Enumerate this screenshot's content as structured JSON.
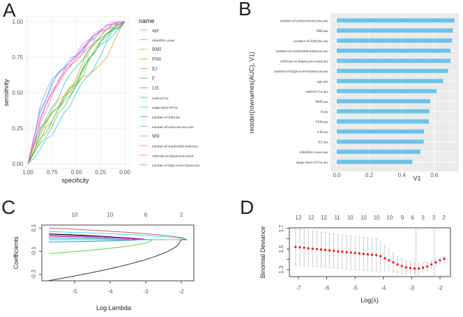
{
  "panels": {
    "a": "A",
    "b": "B",
    "c": "C",
    "d": "D"
  },
  "chart_data": [
    {
      "type": "line",
      "xlabel": "specificity",
      "ylabel": "sensitivity",
      "xlim": [
        1.0,
        0.0
      ],
      "ylim": [
        0.0,
        1.0
      ],
      "x_reversed": true,
      "xticks": [
        "1.00",
        "0.75",
        "0.50",
        "0.25",
        "0.00"
      ],
      "yticks": [
        "0.00",
        "0.25",
        "0.50",
        "0.75",
        "1.00"
      ],
      "grid": true,
      "legend_title": "name",
      "legend_position": "right",
      "x": [
        1.0,
        0.875,
        0.75,
        0.625,
        0.5,
        0.375,
        0.25,
        0.125,
        0.0
      ],
      "series": [
        {
          "name": "age",
          "color": "#F8766D",
          "values": [
            0,
            0.3,
            0.5,
            0.63,
            0.72,
            0.82,
            0.9,
            0.96,
            1
          ]
        },
        {
          "name": "infertility-years",
          "color": "#E58700",
          "values": [
            0,
            0.25,
            0.38,
            0.48,
            0.56,
            0.62,
            0.7,
            0.84,
            1
          ]
        },
        {
          "name": "BMI",
          "color": "#C99800",
          "values": [
            0,
            0.2,
            0.36,
            0.48,
            0.58,
            0.78,
            0.88,
            0.95,
            1
          ]
        },
        {
          "name": "FSH",
          "color": "#A3A500",
          "values": [
            0,
            0.16,
            0.3,
            0.46,
            0.6,
            0.8,
            0.9,
            0.96,
            1
          ]
        },
        {
          "name": "E2",
          "color": "#6BB100",
          "values": [
            0,
            0.14,
            0.26,
            0.4,
            0.55,
            0.72,
            0.86,
            0.95,
            1
          ]
        },
        {
          "name": "P",
          "color": "#00BA38",
          "values": [
            0,
            0.22,
            0.36,
            0.46,
            0.56,
            0.74,
            0.86,
            0.94,
            1
          ]
        },
        {
          "name": "LH",
          "color": "#00BF7D",
          "values": [
            0,
            0.18,
            0.3,
            0.44,
            0.55,
            0.73,
            0.84,
            0.94,
            1
          ]
        },
        {
          "name": "used-of-Gn",
          "color": "#00C0AF",
          "values": [
            0,
            0.24,
            0.4,
            0.56,
            0.68,
            0.8,
            0.88,
            0.95,
            1
          ]
        },
        {
          "name": "usage-days-of-Gn",
          "color": "#00BCD8",
          "values": [
            0,
            0.1,
            0.2,
            0.36,
            0.5,
            0.62,
            0.76,
            0.9,
            1
          ]
        },
        {
          "name": "number-of-follicles",
          "color": "#00B0F6",
          "values": [
            0,
            0.36,
            0.56,
            0.67,
            0.76,
            0.86,
            0.93,
            0.98,
            1
          ]
        },
        {
          "name": "number-of-retrieved-oocytes",
          "color": "#619CFF",
          "values": [
            0,
            0.4,
            0.6,
            0.68,
            0.76,
            0.86,
            0.94,
            0.98,
            1
          ]
        },
        {
          "name": "MII",
          "color": "#B983FF",
          "values": [
            0,
            0.38,
            0.58,
            0.68,
            0.77,
            0.87,
            0.94,
            0.99,
            1
          ]
        },
        {
          "name": "number-of-tranferable-embryos",
          "color": "#E76BF3",
          "values": [
            0,
            0.32,
            0.52,
            0.66,
            0.76,
            0.86,
            0.94,
            1.0,
            1
          ]
        },
        {
          "name": "cultivate-to-blastocyst-count",
          "color": "#FD61D1",
          "values": [
            0,
            0.3,
            0.5,
            0.66,
            0.75,
            0.86,
            0.93,
            0.98,
            1
          ]
        },
        {
          "name": "number-of-high-score-blastocyst",
          "color": "#FF67A4",
          "values": [
            0,
            0.28,
            0.48,
            0.64,
            0.74,
            0.85,
            0.93,
            0.98,
            1
          ]
        }
      ]
    },
    {
      "type": "bar",
      "orientation": "horizontal",
      "xlabel": "V1",
      "ylabel": "reorder(rownames(AUC), V1)",
      "xlim": [
        0,
        0.75
      ],
      "xticks": [
        "0.0",
        "0.2",
        "0.4",
        "0.6"
      ],
      "grid": true,
      "bar_color": "#6CC3E8",
      "categories": [
        "number-of-retrieved-oocytes.auc",
        "MII.auc",
        "number-of-follicles.auc",
        "number-of-tranferable-embryos.auc",
        "cultivate-to-blastocyst-count.auc",
        "number-of-high-score-blastocyst.auc",
        "age.auc",
        "used-of-Gn.auc",
        "BMI.auc",
        "P.auc",
        "FSH.auc",
        "LH.auc",
        "E2.auc",
        "infertility-years.auc",
        "usage-days-of-Gn.auc"
      ],
      "values": [
        0.725,
        0.715,
        0.71,
        0.7,
        0.7,
        0.685,
        0.655,
        0.615,
        0.575,
        0.57,
        0.567,
        0.537,
        0.535,
        0.515,
        0.465
      ]
    },
    {
      "type": "line",
      "xlabel": "Log Lambda",
      "ylabel": "Coefficients",
      "xlim": [
        -5.78,
        -1.65
      ],
      "ylim": [
        -0.36,
        0.12
      ],
      "xticks": [
        "-5",
        "-4",
        "-3",
        "-2"
      ],
      "yticks": [
        "0.1",
        "-0.1",
        "-0.3"
      ],
      "top_axis": {
        "at": [
          -5,
          -4,
          -3,
          -2
        ],
        "labels": [
          "10",
          "10",
          "6",
          "2"
        ]
      },
      "paths": [
        {
          "color": "#DF536B",
          "start": 0.1,
          "zero_at": -1.85
        },
        {
          "color": "#28E2E5",
          "start": 0.07,
          "zero_at": -1.85
        },
        {
          "color": "#000000",
          "start": 0.05,
          "zero_at": -3.3
        },
        {
          "color": "#9E2F9E",
          "start": 0.04,
          "zero_at": -3.0
        },
        {
          "color": "#CD0BBC",
          "start": 0.03,
          "zero_at": -3.1
        },
        {
          "color": "#2297E6",
          "start": 0.015,
          "zero_at": -3.4
        },
        {
          "color": "#61D04F",
          "start": 0.0,
          "zero_at": -2.8
        },
        {
          "color": "#2297E6",
          "start": -0.02,
          "zero_at": -3.2
        },
        {
          "color": "#61D04F",
          "start": -0.12,
          "zero_at": -2.8
        },
        {
          "color": "#333333",
          "start": -0.35,
          "zero_at": -2.0
        }
      ]
    },
    {
      "type": "scatter",
      "xlabel": "Log(λ)",
      "ylabel": "Binomial Deviance",
      "xlim": [
        -7.45,
        -1.6
      ],
      "ylim": [
        1.245,
        1.705
      ],
      "xticks": [
        "-7",
        "-6",
        "-5",
        "-4",
        "-3",
        "-2"
      ],
      "yticks": [
        "1.3",
        "1.5",
        "1.7"
      ],
      "top_axis": {
        "at": [
          -7.0,
          -6.55,
          -6.1,
          -5.63,
          -5.17,
          -4.7,
          -4.24,
          -3.78,
          -3.33,
          -2.97,
          -2.6,
          -2.22,
          -1.86
        ],
        "labels": [
          "12",
          "12",
          "12",
          "11",
          "10",
          "10",
          "10",
          "10",
          "9",
          "6",
          "3",
          "3",
          "2"
        ]
      },
      "vlines": [
        -2.85,
        -2.2
      ],
      "point_color": "#E41A1C",
      "errorbar_color": "#BBBBBB",
      "x": [
        -7.1,
        -6.95,
        -6.8,
        -6.65,
        -6.5,
        -6.35,
        -6.2,
        -6.05,
        -5.9,
        -5.75,
        -5.6,
        -5.45,
        -5.3,
        -5.15,
        -5.0,
        -4.85,
        -4.7,
        -4.55,
        -4.4,
        -4.25,
        -4.1,
        -3.95,
        -3.8,
        -3.65,
        -3.5,
        -3.35,
        -3.2,
        -3.05,
        -2.9,
        -2.75,
        -2.6,
        -2.45,
        -2.3,
        -2.15,
        -2.0,
        -1.85
      ],
      "mean": [
        1.52,
        1.516,
        1.512,
        1.507,
        1.503,
        1.499,
        1.495,
        1.491,
        1.486,
        1.482,
        1.478,
        1.474,
        1.469,
        1.465,
        1.461,
        1.457,
        1.453,
        1.448,
        1.444,
        1.44,
        1.43,
        1.41,
        1.39,
        1.37,
        1.35,
        1.335,
        1.322,
        1.315,
        1.31,
        1.31,
        1.318,
        1.33,
        1.35,
        1.37,
        1.39,
        1.405
      ],
      "se": [
        0.175,
        0.174,
        0.173,
        0.172,
        0.171,
        0.17,
        0.169,
        0.168,
        0.167,
        0.166,
        0.165,
        0.164,
        0.163,
        0.162,
        0.161,
        0.16,
        0.159,
        0.158,
        0.157,
        0.156,
        0.14,
        0.12,
        0.105,
        0.09,
        0.08,
        0.07,
        0.062,
        0.056,
        0.052,
        0.05,
        0.045,
        0.04,
        0.035,
        0.03,
        0.025,
        0.02
      ]
    }
  ]
}
